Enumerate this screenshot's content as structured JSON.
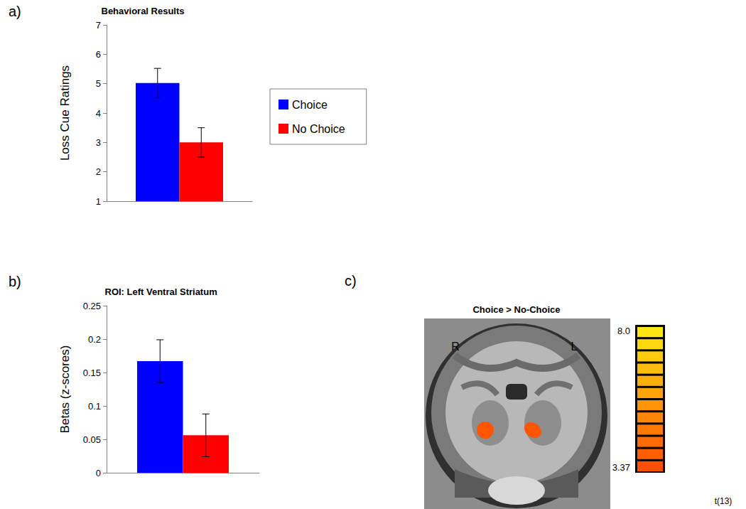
{
  "chart_data": [
    {
      "type": "bar",
      "title": "Behavioral Results",
      "annotations": [
        "a)"
      ],
      "y_label": "Loss Cue Ratings",
      "categories": [
        null
      ],
      "series": [
        {
          "name": "Choice",
          "color": "#0000ff",
          "values": [
            5.02
          ],
          "errors": [
            0.5
          ]
        },
        {
          "name": "No Choice",
          "color": "#ff0000",
          "values": [
            3.0
          ],
          "errors": [
            0.5
          ]
        }
      ],
      "ylim": [
        1,
        7
      ],
      "yticks": [
        1,
        2,
        3,
        4,
        5,
        6,
        7
      ],
      "grid": false,
      "legend": "right"
    },
    {
      "type": "bar",
      "title": "ROI: Left Ventral Striatum",
      "annotations": [
        "b)"
      ],
      "y_label": "Betas (z-scores)",
      "categories": [
        null
      ],
      "series": [
        {
          "name": "Choice",
          "color": "#0000ff",
          "values": [
            0.167
          ],
          "errors": [
            0.032
          ]
        },
        {
          "name": "No Choice",
          "color": "#ff0000",
          "values": [
            0.056
          ],
          "errors": [
            0.032
          ]
        }
      ],
      "ylim": [
        0,
        0.25
      ],
      "yticks": [
        0,
        0.05,
        0.1,
        0.15,
        0.2,
        0.25
      ],
      "grid": false
    }
  ],
  "brain_map": {
    "annotations": [
      "c)"
    ],
    "title": "Choice > No-Choice",
    "hemisphere_labels": [
      "R",
      "L"
    ],
    "colorbar": {
      "range": [
        3.37,
        8.0
      ],
      "ticks": [
        {
          "value": 8.0,
          "label": "8.0"
        },
        3.37
      ],
      "label": "t(13)"
    }
  }
}
